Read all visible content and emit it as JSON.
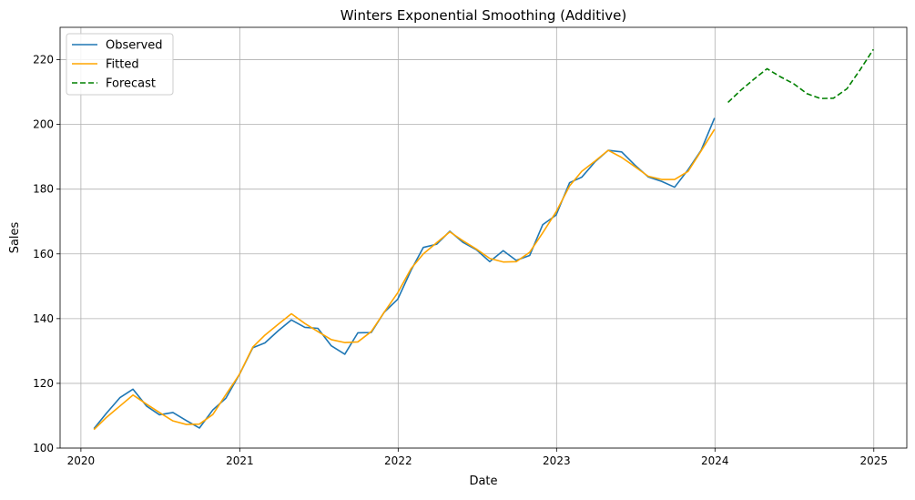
{
  "chart_data": {
    "type": "line",
    "title": "Winters Exponential Smoothing (Additive)",
    "xlabel": "Date",
    "ylabel": "Sales",
    "xlim": [
      "2019-11-14",
      "2025-03-18"
    ],
    "ylim": [
      100,
      230
    ],
    "grid": true,
    "legend_position": "top-left",
    "x_ticks": [
      {
        "date": "2020-01-01",
        "label": "2020"
      },
      {
        "date": "2021-01-01",
        "label": "2021"
      },
      {
        "date": "2022-01-01",
        "label": "2022"
      },
      {
        "date": "2023-01-01",
        "label": "2023"
      },
      {
        "date": "2024-01-01",
        "label": "2024"
      },
      {
        "date": "2025-01-01",
        "label": "2025"
      }
    ],
    "y_ticks": [
      {
        "value": 100,
        "label": "100"
      },
      {
        "value": 120,
        "label": "120"
      },
      {
        "value": 140,
        "label": "140"
      },
      {
        "value": 160,
        "label": "160"
      },
      {
        "value": 180,
        "label": "180"
      },
      {
        "value": 200,
        "label": "200"
      },
      {
        "value": 220,
        "label": "220"
      }
    ],
    "series": [
      {
        "name": "Observed",
        "color": "#1f77b4",
        "dash": "solid",
        "x": [
          "2020-01-31",
          "2020-02-29",
          "2020-03-31",
          "2020-04-30",
          "2020-05-31",
          "2020-06-30",
          "2020-07-31",
          "2020-08-31",
          "2020-09-30",
          "2020-10-31",
          "2020-11-30",
          "2020-12-31",
          "2021-01-31",
          "2021-02-28",
          "2021-03-31",
          "2021-04-30",
          "2021-05-31",
          "2021-06-30",
          "2021-07-31",
          "2021-08-31",
          "2021-09-30",
          "2021-10-31",
          "2021-11-30",
          "2021-12-31",
          "2022-01-31",
          "2022-02-28",
          "2022-03-31",
          "2022-04-30",
          "2022-05-31",
          "2022-06-30",
          "2022-07-31",
          "2022-08-31",
          "2022-09-30",
          "2022-10-31",
          "2022-11-30",
          "2022-12-31",
          "2023-01-31",
          "2023-02-28",
          "2023-03-31",
          "2023-04-30",
          "2023-05-31",
          "2023-06-30",
          "2023-07-31",
          "2023-08-31",
          "2023-09-30",
          "2023-10-31",
          "2023-11-30",
          "2023-12-31"
        ],
        "values": [
          106.0,
          110.8,
          115.6,
          118.2,
          113.0,
          110.3,
          111.0,
          108.5,
          106.2,
          111.8,
          115.4,
          122.7,
          131.0,
          132.5,
          136.3,
          139.6,
          137.3,
          137.0,
          131.6,
          129.0,
          135.6,
          135.7,
          142.0,
          146.0,
          155.0,
          162.0,
          163.0,
          167.0,
          163.5,
          161.3,
          157.6,
          161.0,
          158.0,
          159.5,
          169.0,
          172.0,
          182.0,
          183.7,
          188.5,
          192.0,
          191.5,
          187.5,
          183.8,
          182.4,
          180.6,
          186.0,
          192.0,
          202.0
        ]
      },
      {
        "name": "Fitted",
        "color": "#ffa500",
        "dash": "solid",
        "x": [
          "2020-01-31",
          "2020-02-29",
          "2020-03-31",
          "2020-04-30",
          "2020-05-31",
          "2020-06-30",
          "2020-07-31",
          "2020-08-31",
          "2020-09-30",
          "2020-10-31",
          "2020-11-30",
          "2020-12-31",
          "2021-01-31",
          "2021-02-28",
          "2021-03-31",
          "2021-04-30",
          "2021-05-31",
          "2021-06-30",
          "2021-07-31",
          "2021-08-31",
          "2021-09-30",
          "2021-10-31",
          "2021-11-30",
          "2021-12-31",
          "2022-01-31",
          "2022-02-28",
          "2022-03-31",
          "2022-04-30",
          "2022-05-31",
          "2022-06-30",
          "2022-07-31",
          "2022-08-31",
          "2022-09-30",
          "2022-10-31",
          "2022-11-30",
          "2022-12-31",
          "2023-01-31",
          "2023-02-28",
          "2023-03-31",
          "2023-04-30",
          "2023-05-31",
          "2023-06-30",
          "2023-07-31",
          "2023-08-31",
          "2023-09-30",
          "2023-10-31",
          "2023-11-30",
          "2023-12-31"
        ],
        "values": [
          105.7,
          109.5,
          113.0,
          116.4,
          113.6,
          111.0,
          108.4,
          107.3,
          107.4,
          110.4,
          116.5,
          122.7,
          131.2,
          134.9,
          138.3,
          141.5,
          138.5,
          136.0,
          133.5,
          132.6,
          132.8,
          136.0,
          142.0,
          148.0,
          155.5,
          160.0,
          163.5,
          166.8,
          164.0,
          161.5,
          158.6,
          157.5,
          157.6,
          160.5,
          166.5,
          173.0,
          181.0,
          185.5,
          188.7,
          192.0,
          189.8,
          187.0,
          184.0,
          183.0,
          183.0,
          185.5,
          191.8,
          198.5
        ]
      },
      {
        "name": "Forecast",
        "color": "#008000",
        "dash": "dashed",
        "x": [
          "2024-01-31",
          "2024-02-29",
          "2024-03-31",
          "2024-04-30",
          "2024-05-31",
          "2024-06-30",
          "2024-07-31",
          "2024-08-31",
          "2024-09-30",
          "2024-10-31",
          "2024-11-30",
          "2024-12-31"
        ],
        "values": [
          206.8,
          210.5,
          214.0,
          217.2,
          214.7,
          212.6,
          209.5,
          208.0,
          208.1,
          211.0,
          216.8,
          223.2
        ]
      }
    ]
  }
}
